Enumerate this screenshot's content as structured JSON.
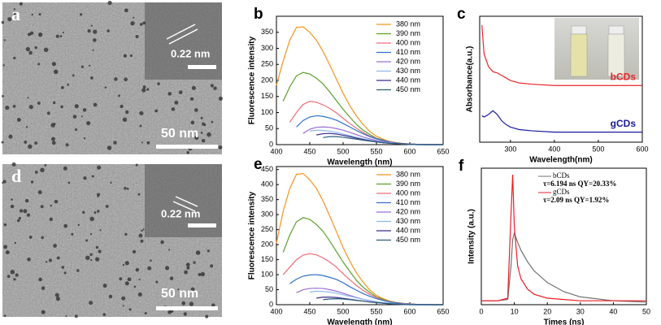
{
  "images": [
    {
      "label": "a",
      "lattice_spacing": "0.22 nm",
      "scale_bar": "50 nm"
    },
    {
      "label": "d",
      "lattice_spacing": "0.22 nm",
      "scale_bar": "50 nm"
    }
  ],
  "chart_data": [
    {
      "type": "line",
      "label": "b",
      "x_label": "Wavelength (nm)",
      "y_label": "Fluorescence intensity",
      "x": [
        400,
        410,
        420,
        430,
        440,
        450,
        460,
        470,
        480,
        490,
        500,
        510,
        520,
        530,
        540,
        550,
        560,
        570,
        580,
        590,
        600,
        610,
        620,
        630,
        640,
        650
      ],
      "xlim": [
        400,
        650
      ],
      "xticks": [
        400,
        450,
        500,
        550,
        600,
        650
      ],
      "ylim": [
        0,
        400
      ],
      "yticks": [
        0,
        50,
        100,
        150,
        200,
        250,
        300,
        350
      ],
      "legend": "upper right",
      "series": [
        {
          "name": "380 nm",
          "color": "#f7941d",
          "values": [
            185,
            260,
            325,
            365,
            367,
            350,
            325,
            290,
            248,
            204,
            160,
            122,
            89,
            63,
            41,
            26,
            17,
            10,
            6,
            4,
            2,
            1,
            1,
            0,
            0,
            0
          ]
        },
        {
          "name": "390 nm",
          "color": "#5aa02c",
          "values": [
            null,
            135,
            180,
            214,
            225,
            220,
            207,
            189,
            164,
            137,
            110,
            86,
            63,
            45,
            32,
            20,
            14,
            7,
            5,
            3,
            2,
            1,
            0,
            0,
            0,
            0
          ]
        },
        {
          "name": "400 nm",
          "color": "#f06c7a",
          "values": [
            null,
            null,
            70,
            100,
            125,
            135,
            132,
            124,
            113,
            99,
            82,
            66,
            51,
            38,
            27,
            19,
            12,
            8,
            5,
            3,
            2,
            1,
            1,
            0,
            0,
            0
          ]
        },
        {
          "name": "410 nm",
          "color": "#2f6fc4",
          "values": [
            null,
            null,
            null,
            55,
            75,
            86,
            90,
            88,
            83,
            76,
            66,
            55,
            44,
            34,
            25,
            18,
            13,
            8,
            5,
            3,
            2,
            1,
            1,
            0,
            0,
            0
          ]
        },
        {
          "name": "420 nm",
          "color": "#9a6fd0",
          "values": [
            null,
            null,
            null,
            null,
            35,
            48,
            54,
            55,
            54,
            50,
            45,
            38,
            31,
            24,
            18,
            13,
            9,
            6,
            4,
            2,
            1,
            1,
            0,
            0,
            0,
            0
          ]
        },
        {
          "name": "430 nm",
          "color": "#8fb8e8",
          "values": [
            null,
            null,
            null,
            null,
            null,
            42,
            45,
            44,
            42,
            38,
            33,
            28,
            23,
            18,
            14,
            10,
            7,
            5,
            3,
            2,
            1,
            0,
            0,
            0,
            0,
            0
          ]
        },
        {
          "name": "440 nm",
          "color": "#3a2a8c",
          "values": [
            null,
            null,
            null,
            null,
            null,
            null,
            30,
            34,
            35,
            33,
            29,
            25,
            20,
            16,
            12,
            9,
            6,
            4,
            3,
            2,
            1,
            0,
            0,
            0,
            0,
            0
          ]
        },
        {
          "name": "450 nm",
          "color": "#2b5f7a",
          "values": [
            null,
            null,
            null,
            null,
            null,
            null,
            null,
            22,
            25,
            25,
            23,
            20,
            17,
            14,
            11,
            8,
            6,
            4,
            3,
            2,
            1,
            0,
            0,
            0,
            0,
            0
          ]
        }
      ]
    },
    {
      "type": "line",
      "label": "c",
      "x_label": "Wavelength(nm)",
      "y_label": "Absorbance(a.u.)",
      "x": [
        235,
        240,
        250,
        260,
        270,
        280,
        290,
        300,
        320,
        350,
        400,
        450,
        500,
        550,
        600
      ],
      "xlim": [
        230,
        600
      ],
      "xticks": [
        300,
        400,
        500,
        600
      ],
      "ylim": [
        0,
        1
      ],
      "legend": "inline",
      "series": [
        {
          "name": "bCDs",
          "color": "#e8262a",
          "values": [
            0.93,
            0.7,
            0.6,
            0.56,
            0.55,
            0.53,
            0.51,
            0.49,
            0.47,
            0.46,
            0.45,
            0.45,
            0.45,
            0.45,
            0.45
          ]
        },
        {
          "name": "gCDs",
          "color": "#1a1a9c",
          "values": [
            0.21,
            0.2,
            0.22,
            0.25,
            0.22,
            0.17,
            0.14,
            0.12,
            0.1,
            0.09,
            0.08,
            0.08,
            0.08,
            0.08,
            0.08
          ]
        }
      ]
    },
    {
      "type": "line",
      "label": "e",
      "x_label": "Wavelength (nm)",
      "y_label": "Fluorescence intensity",
      "x": [
        400,
        410,
        420,
        430,
        440,
        450,
        460,
        470,
        480,
        490,
        500,
        510,
        520,
        530,
        540,
        550,
        560,
        570,
        580,
        590,
        600,
        610,
        620,
        630,
        640,
        650
      ],
      "xlim": [
        400,
        650
      ],
      "xticks": [
        400,
        450,
        500,
        550,
        600,
        650
      ],
      "ylim": [
        0,
        460
      ],
      "yticks": [
        0,
        50,
        100,
        150,
        200,
        250,
        300,
        350,
        400,
        450
      ],
      "legend": "upper right",
      "series": [
        {
          "name": "380 nm",
          "color": "#f7941d",
          "values": [
            205,
            310,
            387,
            434,
            437,
            416,
            387,
            345,
            295,
            243,
            190,
            145,
            106,
            75,
            49,
            31,
            20,
            12,
            7,
            5,
            2,
            1,
            1,
            0,
            0,
            0
          ]
        },
        {
          "name": "390 nm",
          "color": "#5aa02c",
          "values": [
            null,
            174,
            232,
            276,
            290,
            284,
            267,
            244,
            212,
            177,
            142,
            111,
            81,
            58,
            41,
            26,
            18,
            9,
            6,
            4,
            3,
            1,
            0,
            0,
            0,
            0
          ]
        },
        {
          "name": "400 nm",
          "color": "#f06c7a",
          "values": [
            null,
            100,
            125,
            150,
            165,
            170,
            166,
            156,
            142,
            125,
            103,
            83,
            64,
            48,
            34,
            24,
            15,
            10,
            6,
            4,
            3,
            1,
            1,
            0,
            0,
            0
          ]
        },
        {
          "name": "410 nm",
          "color": "#2f6fc4",
          "values": [
            null,
            null,
            70,
            85,
            95,
            99,
            100,
            97,
            91,
            84,
            73,
            60,
            48,
            37,
            28,
            20,
            14,
            9,
            6,
            3,
            2,
            1,
            1,
            0,
            0,
            0
          ]
        },
        {
          "name": "420 nm",
          "color": "#9a6fd0",
          "values": [
            null,
            null,
            null,
            40,
            50,
            54,
            55,
            54,
            50,
            45,
            38,
            31,
            24,
            18,
            13,
            9,
            6,
            4,
            2,
            1,
            1,
            0,
            0,
            0,
            0,
            0
          ]
        },
        {
          "name": "430 nm",
          "color": "#8fb8e8",
          "values": [
            null,
            null,
            null,
            null,
            null,
            42,
            45,
            44,
            42,
            38,
            33,
            28,
            23,
            18,
            14,
            10,
            7,
            5,
            3,
            2,
            1,
            0,
            0,
            0,
            0,
            0
          ]
        },
        {
          "name": "440 nm",
          "color": "#3a2a8c",
          "values": [
            null,
            null,
            null,
            null,
            null,
            null,
            22,
            25,
            25,
            24,
            21,
            18,
            15,
            12,
            9,
            7,
            5,
            3,
            2,
            1,
            0,
            0,
            0,
            0,
            0,
            0
          ]
        },
        {
          "name": "450 nm",
          "color": "#2b5f7a",
          "values": [
            null,
            null,
            null,
            null,
            null,
            null,
            null,
            17,
            19,
            20,
            19,
            17,
            14,
            12,
            9,
            7,
            5,
            3,
            2,
            1,
            0,
            0,
            0,
            0,
            0,
            0
          ]
        }
      ]
    },
    {
      "type": "line",
      "label": "f",
      "x_label": "Times (ns)",
      "y_label": "Intensity (a.u.)",
      "x": [
        0,
        5,
        8,
        9,
        9.5,
        10,
        11,
        12,
        14,
        16,
        20,
        25,
        30,
        40,
        50
      ],
      "xlim": [
        0,
        50
      ],
      "xticks": [
        0,
        10,
        20,
        30,
        40,
        50
      ],
      "ylim": [
        0,
        1.05
      ],
      "legend": "upper center",
      "annotations": [
        "τ=6.194 ns  QY=20.33%",
        "τ=2.09 ns  QY=1.92%"
      ],
      "series": [
        {
          "name": "bCDs",
          "color": "#707070",
          "values": [
            0.03,
            0.03,
            0.04,
            0.3,
            0.5,
            0.55,
            0.48,
            0.42,
            0.33,
            0.26,
            0.17,
            0.1,
            0.06,
            0.03,
            0.02
          ]
        },
        {
          "name": "gCDs",
          "color": "#ee1c25",
          "values": [
            0.03,
            0.03,
            0.05,
            0.7,
            1.0,
            0.6,
            0.3,
            0.2,
            0.12,
            0.08,
            0.05,
            0.04,
            0.03,
            0.03,
            0.03
          ]
        }
      ]
    }
  ]
}
